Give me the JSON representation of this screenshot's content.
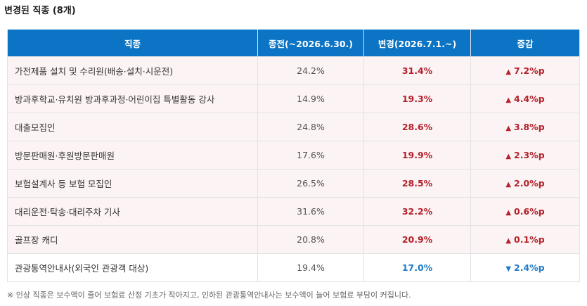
{
  "title": "변경된 직종 (8개)",
  "table": {
    "headers": {
      "job": "직종",
      "before": "종전(~2026.6.30.)",
      "after": "변경(2026.7.1.~)",
      "change": "증감"
    },
    "rows": [
      {
        "job": "가전제품 설치 및 수리원(배송·설치·시운전)",
        "before": "24.2%",
        "after": "31.4%",
        "arrow": "▲",
        "change": "7.2%p",
        "direction": "up"
      },
      {
        "job": "방과후학교·유치원 방과후과정·어린이집 특별활동 강사",
        "before": "14.9%",
        "after": "19.3%",
        "arrow": "▲",
        "change": "4.4%p",
        "direction": "up"
      },
      {
        "job": "대출모집인",
        "before": "24.8%",
        "after": "28.6%",
        "arrow": "▲",
        "change": "3.8%p",
        "direction": "up"
      },
      {
        "job": "방문판매원·후원방문판매원",
        "before": "17.6%",
        "after": "19.9%",
        "arrow": "▲",
        "change": "2.3%p",
        "direction": "up"
      },
      {
        "job": "보험설계사 등 보험 모집인",
        "before": "26.5%",
        "after": "28.5%",
        "arrow": "▲",
        "change": "2.0%p",
        "direction": "up"
      },
      {
        "job": "대리운전·탁송·대리주차 기사",
        "before": "31.6%",
        "after": "32.2%",
        "arrow": "▲",
        "change": "0.6%p",
        "direction": "up"
      },
      {
        "job": "골프장 캐디",
        "before": "20.8%",
        "after": "20.9%",
        "arrow": "▲",
        "change": "0.1%p",
        "direction": "up"
      },
      {
        "job": "관광통역안내사(외국인 관광객 대상)",
        "before": "19.4%",
        "after": "17.0%",
        "arrow": "▼",
        "change": "2.4%p",
        "direction": "down"
      }
    ]
  },
  "footnote": "※ 인상 직종은 보수액이 줄어 보험료 산정 기초가 작아지고, 인하된 관광통역안내사는 보수액이 늘어 보험료 부담이 커집니다.",
  "colors": {
    "header_bg": "#0b74c4",
    "increase": "#b3212b",
    "decrease": "#1f7bc9",
    "row_tint": "#fcf3f4"
  }
}
